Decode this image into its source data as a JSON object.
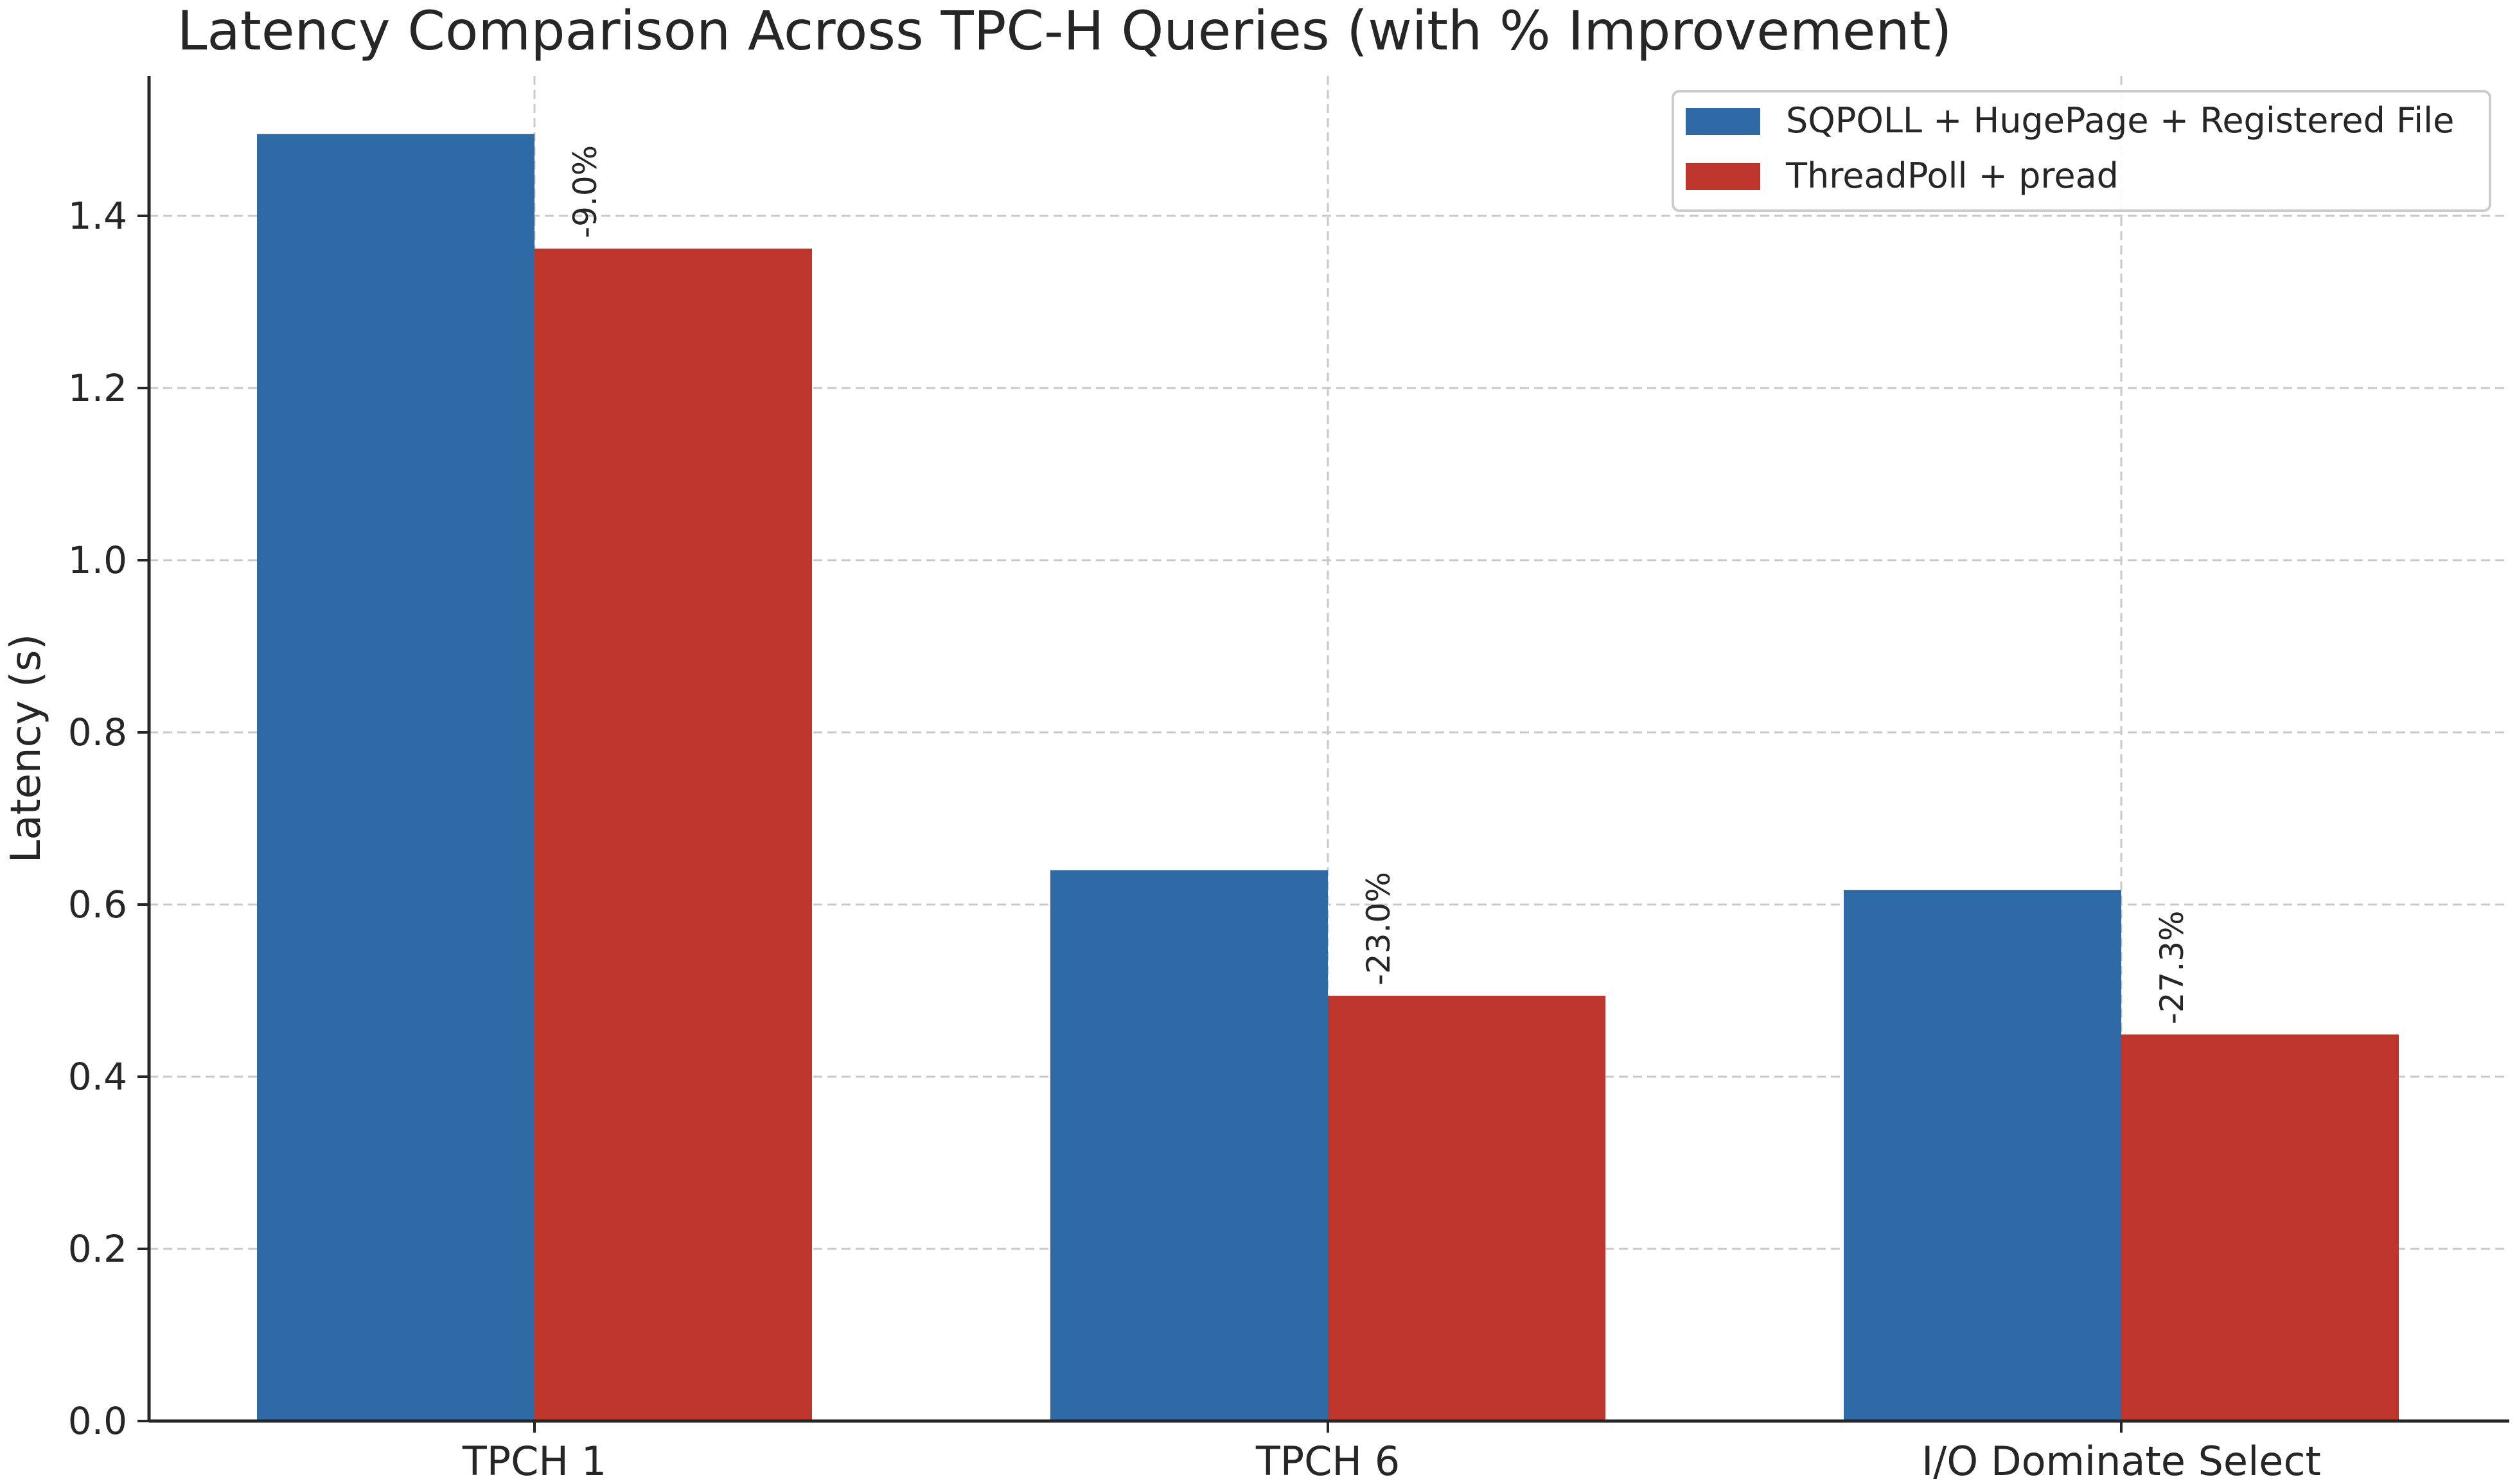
{
  "chart_data": {
    "type": "bar",
    "title": "Latency Comparison Across TPC-H Queries (with % Improvement)",
    "xlabel": "",
    "ylabel": "Latency (s)",
    "categories": [
      "TPCH 1",
      "TPCH 6",
      "I/O Dominate Select"
    ],
    "ylim": [
      0,
      1.58
    ],
    "yticks": [
      0.0,
      0.2,
      0.4,
      0.6,
      0.8,
      1.0,
      1.2,
      1.4
    ],
    "ytick_labels": [
      "0.0",
      "0.2",
      "0.4",
      "0.6",
      "0.8",
      "1.0",
      "1.2",
      "1.4"
    ],
    "grid": true,
    "legend_position": "top-right",
    "series": [
      {
        "name": "SQPOLL + HugePage + Registered File",
        "color": "#2e6aa6",
        "values": [
          1.495,
          0.64,
          0.617
        ]
      },
      {
        "name": "ThreadPoll + pread",
        "color": "#bd352b",
        "values": [
          1.362,
          0.494,
          0.449
        ]
      }
    ],
    "annotations": [
      "-9.0%",
      "-23.0%",
      "-27.3%"
    ]
  }
}
